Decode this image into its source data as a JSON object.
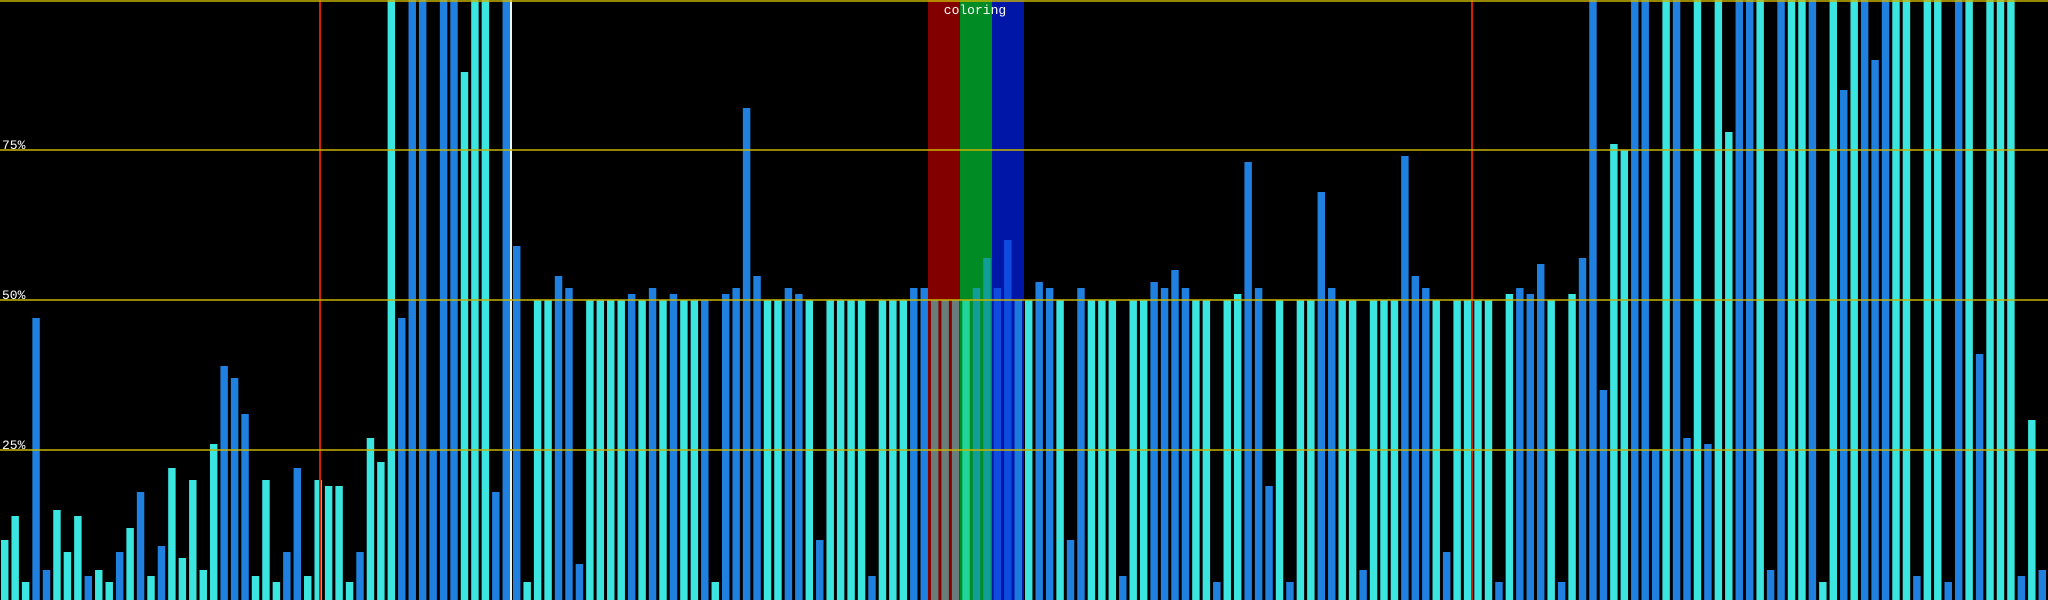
{
  "chart_data": {
    "type": "bar",
    "band_label": "coloring",
    "ylim": [
      0,
      100
    ],
    "yticks": [
      {
        "value": 25,
        "label": "25%"
      },
      {
        "value": 50,
        "label": "50%"
      },
      {
        "value": 75,
        "label": "75%"
      }
    ],
    "grid": true,
    "palette": [
      "#3ce6e0",
      "#1f80e0"
    ],
    "values": [
      10,
      14,
      3,
      47,
      5,
      15,
      8,
      14,
      4,
      5,
      3,
      8,
      12,
      18,
      4,
      9,
      22,
      7,
      20,
      5,
      26,
      39,
      37,
      31,
      4,
      20,
      3,
      8,
      22,
      4,
      20,
      19,
      19,
      3,
      8,
      27,
      23,
      100,
      47,
      100,
      100,
      25,
      100,
      100,
      88,
      100,
      100,
      18,
      100,
      59,
      3,
      50,
      50,
      54,
      52,
      6,
      50,
      50,
      50,
      50,
      51,
      50,
      52,
      50,
      51,
      50,
      50,
      50,
      3,
      51,
      52,
      82,
      54,
      50,
      50,
      52,
      51,
      50,
      10,
      50,
      50,
      50,
      50,
      4,
      50,
      50,
      50,
      52,
      52,
      50,
      50,
      50,
      50,
      52,
      57,
      52,
      60,
      50,
      50,
      53,
      52,
      50,
      10,
      52,
      50,
      50,
      50,
      4,
      50,
      50,
      53,
      52,
      55,
      52,
      50,
      50,
      3,
      50,
      51,
      73,
      52,
      19,
      50,
      3,
      50,
      50,
      68,
      52,
      50,
      50,
      5,
      50,
      50,
      50,
      74,
      54,
      52,
      50,
      8,
      50,
      50,
      50,
      50,
      3,
      51,
      52,
      51,
      56,
      50,
      3,
      51,
      57,
      100,
      35,
      76,
      75,
      100,
      100,
      25,
      100,
      100,
      27,
      100,
      26,
      100,
      78,
      100,
      100,
      100,
      5,
      100,
      100,
      100,
      100,
      3,
      100,
      85,
      100,
      100,
      90,
      100,
      100,
      100,
      4,
      100,
      100,
      3,
      100,
      100,
      41,
      100,
      100,
      100,
      4,
      30,
      5
    ],
    "color_index": [
      0,
      0,
      0,
      1,
      1,
      0,
      0,
      0,
      1,
      0,
      0,
      1,
      0,
      1,
      0,
      1,
      0,
      0,
      0,
      0,
      0,
      1,
      1,
      1,
      0,
      0,
      0,
      1,
      1,
      0,
      0,
      0,
      0,
      0,
      1,
      0,
      0,
      0,
      1,
      1,
      1,
      1,
      1,
      1,
      0,
      0,
      0,
      1,
      1,
      1,
      0,
      0,
      0,
      1,
      1,
      1,
      0,
      0,
      0,
      0,
      1,
      0,
      1,
      0,
      1,
      0,
      0,
      1,
      0,
      1,
      1,
      1,
      1,
      0,
      0,
      1,
      1,
      0,
      1,
      0,
      0,
      0,
      0,
      1,
      0,
      0,
      0,
      1,
      1,
      0,
      0,
      0,
      0,
      1,
      1,
      1,
      1,
      0,
      0,
      1,
      1,
      0,
      1,
      1,
      0,
      0,
      0,
      1,
      0,
      0,
      1,
      1,
      1,
      1,
      0,
      0,
      1,
      0,
      0,
      1,
      1,
      1,
      0,
      1,
      0,
      0,
      1,
      1,
      0,
      0,
      1,
      0,
      0,
      0,
      1,
      1,
      1,
      0,
      1,
      0,
      0,
      0,
      0,
      1,
      0,
      1,
      1,
      1,
      0,
      1,
      0,
      1,
      1,
      1,
      0,
      0,
      1,
      1,
      1,
      0,
      1,
      1,
      0,
      1,
      0,
      0,
      1,
      1,
      0,
      1,
      1,
      0,
      0,
      1,
      0,
      0,
      1,
      0,
      1,
      1,
      1,
      0,
      0,
      1,
      0,
      0,
      1,
      1,
      0,
      1,
      0,
      0,
      0,
      1,
      0,
      1
    ]
  }
}
